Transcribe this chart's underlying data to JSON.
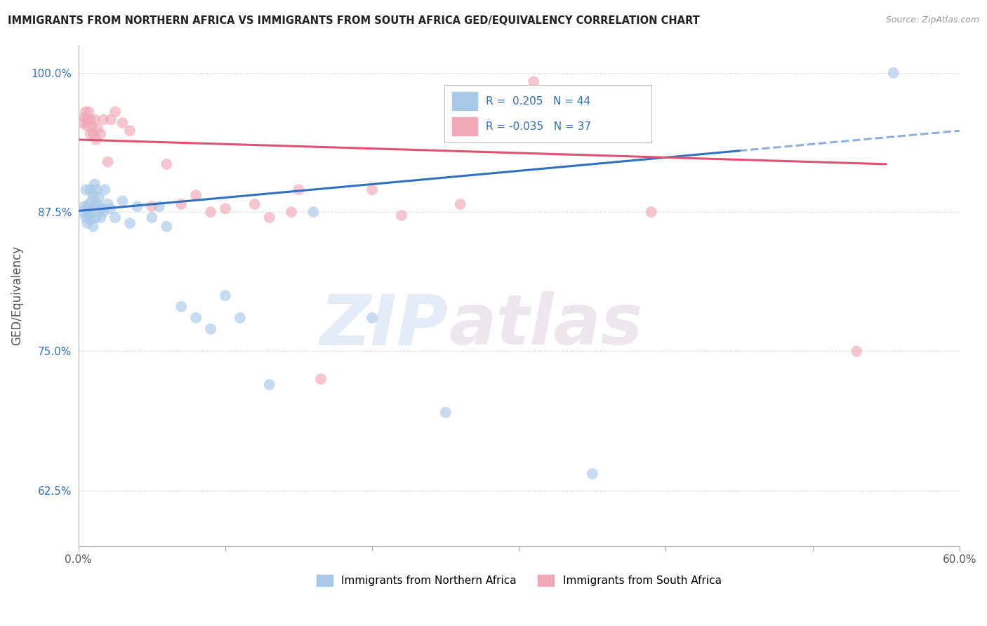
{
  "title": "IMMIGRANTS FROM NORTHERN AFRICA VS IMMIGRANTS FROM SOUTH AFRICA GED/EQUIVALENCY CORRELATION CHART",
  "source": "Source: ZipAtlas.com",
  "ylabel": "GED/Equivalency",
  "xmin": 0.0,
  "xmax": 0.6,
  "ymin": 0.575,
  "ymax": 1.025,
  "yticks": [
    0.625,
    0.75,
    0.875,
    1.0
  ],
  "ytick_labels": [
    "62.5%",
    "75.0%",
    "87.5%",
    "100.0%"
  ],
  "xticks": [
    0.0,
    0.1,
    0.2,
    0.3,
    0.4,
    0.5,
    0.6
  ],
  "xtick_labels": [
    "0.0%",
    "",
    "",
    "",
    "",
    "",
    "60.0%"
  ],
  "blue_color": "#a8c8e8",
  "pink_color": "#f0a8b8",
  "blue_line_color": "#3070c0",
  "pink_line_color": "#e05070",
  "watermark_zip": "ZIP",
  "watermark_atlas": "atlas",
  "blue_scatter_x": [
    0.003,
    0.004,
    0.005,
    0.005,
    0.006,
    0.006,
    0.007,
    0.007,
    0.008,
    0.008,
    0.009,
    0.009,
    0.01,
    0.01,
    0.011,
    0.011,
    0.012,
    0.012,
    0.013,
    0.014,
    0.015,
    0.016,
    0.017,
    0.018,
    0.02,
    0.022,
    0.025,
    0.03,
    0.035,
    0.04,
    0.05,
    0.055,
    0.06,
    0.07,
    0.08,
    0.09,
    0.1,
    0.11,
    0.13,
    0.16,
    0.2,
    0.25,
    0.35,
    0.555
  ],
  "blue_scatter_y": [
    0.875,
    0.88,
    0.895,
    0.87,
    0.878,
    0.865,
    0.882,
    0.872,
    0.895,
    0.868,
    0.885,
    0.875,
    0.89,
    0.862,
    0.9,
    0.88,
    0.895,
    0.87,
    0.882,
    0.888,
    0.87,
    0.878,
    0.875,
    0.895,
    0.882,
    0.878,
    0.87,
    0.885,
    0.865,
    0.88,
    0.87,
    0.88,
    0.862,
    0.79,
    0.78,
    0.77,
    0.8,
    0.78,
    0.72,
    0.875,
    0.78,
    0.695,
    0.64,
    1.0
  ],
  "pink_scatter_x": [
    0.003,
    0.004,
    0.005,
    0.006,
    0.006,
    0.007,
    0.008,
    0.008,
    0.009,
    0.01,
    0.011,
    0.012,
    0.013,
    0.015,
    0.017,
    0.02,
    0.022,
    0.025,
    0.03,
    0.035,
    0.05,
    0.06,
    0.07,
    0.08,
    0.09,
    0.1,
    0.12,
    0.13,
    0.145,
    0.15,
    0.165,
    0.2,
    0.22,
    0.26,
    0.31,
    0.39,
    0.53
  ],
  "pink_scatter_y": [
    0.955,
    0.96,
    0.965,
    0.952,
    0.958,
    0.965,
    0.945,
    0.958,
    0.952,
    0.945,
    0.958,
    0.94,
    0.95,
    0.945,
    0.958,
    0.92,
    0.958,
    0.965,
    0.955,
    0.948,
    0.88,
    0.918,
    0.882,
    0.89,
    0.875,
    0.878,
    0.882,
    0.87,
    0.875,
    0.895,
    0.725,
    0.895,
    0.872,
    0.882,
    0.992,
    0.875,
    0.75
  ],
  "blue_line_x0": 0.0,
  "blue_line_y0": 0.876,
  "blue_line_x1": 0.45,
  "blue_line_y1": 0.93,
  "blue_line_x1_ext": 0.6,
  "blue_line_y1_ext": 0.948,
  "pink_line_x0": 0.0,
  "pink_line_y0": 0.94,
  "pink_line_x1": 0.55,
  "pink_line_y1": 0.918
}
